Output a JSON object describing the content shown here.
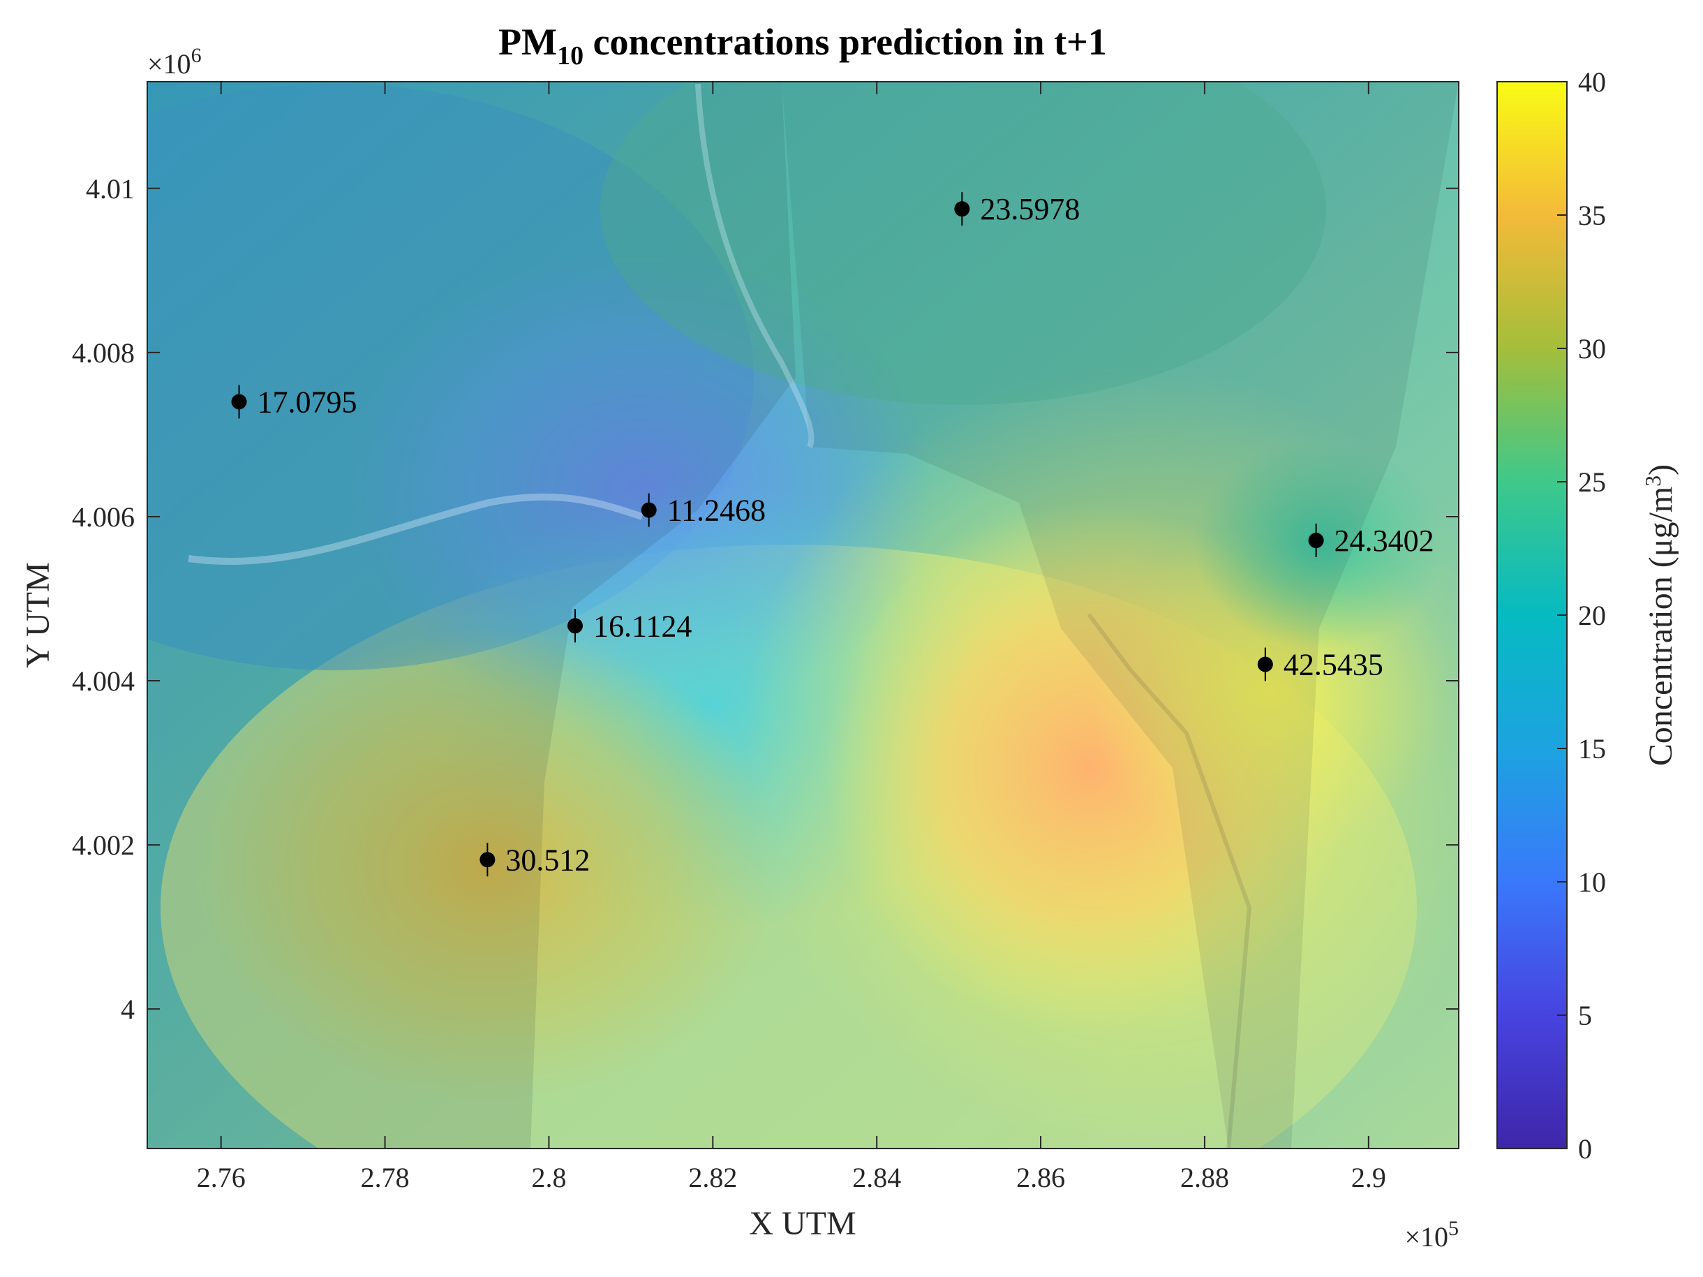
{
  "chart_data": {
    "type": "heatmap",
    "title": {
      "main": "PM",
      "sub": "10",
      "rest": " concentrations prediction in t+1"
    },
    "xlabel": "X UTM",
    "ylabel": "Y UTM",
    "x_multiplier": {
      "base": "×10",
      "exp": "5"
    },
    "y_multiplier": {
      "base": "×10",
      "exp": "6"
    },
    "xlim": [
      2.751,
      2.911
    ],
    "ylim": [
      3.9983,
      4.0113
    ],
    "x_ticks": [
      {
        "value": 2.76,
        "label": "2.76"
      },
      {
        "value": 2.78,
        "label": "2.78"
      },
      {
        "value": 2.8,
        "label": "2.8"
      },
      {
        "value": 2.82,
        "label": "2.82"
      },
      {
        "value": 2.84,
        "label": "2.84"
      },
      {
        "value": 2.86,
        "label": "2.86"
      },
      {
        "value": 2.88,
        "label": "2.88"
      },
      {
        "value": 2.9,
        "label": "2.9"
      }
    ],
    "y_ticks": [
      {
        "value": 4.0,
        "label": "4"
      },
      {
        "value": 4.002,
        "label": "4.002"
      },
      {
        "value": 4.004,
        "label": "4.004"
      },
      {
        "value": 4.006,
        "label": "4.006"
      },
      {
        "value": 4.008,
        "label": "4.008"
      },
      {
        "value": 4.01,
        "label": "4.01"
      }
    ],
    "colorbar": {
      "label": "Concentration (μg/m",
      "label_sup": "3",
      "label_end": ")",
      "range": [
        0,
        40
      ],
      "ticks": [
        {
          "value": 0,
          "label": "0"
        },
        {
          "value": 5,
          "label": "5"
        },
        {
          "value": 10,
          "label": "10"
        },
        {
          "value": 15,
          "label": "15"
        },
        {
          "value": 20,
          "label": "20"
        },
        {
          "value": 25,
          "label": "25"
        },
        {
          "value": 30,
          "label": "30"
        },
        {
          "value": 35,
          "label": "35"
        },
        {
          "value": 40,
          "label": "40"
        }
      ],
      "colormap": "parula"
    },
    "points": [
      {
        "x": 2.7622,
        "y": 4.0074,
        "value": 17.0795,
        "label": "17.0795"
      },
      {
        "x": 2.8122,
        "y": 4.00608,
        "value": 11.2468,
        "label": "11.2468"
      },
      {
        "x": 2.8032,
        "y": 4.00467,
        "value": 16.1124,
        "label": "16.1124"
      },
      {
        "x": 2.7925,
        "y": 4.00182,
        "value": 30.512,
        "label": "30.512"
      },
      {
        "x": 2.8504,
        "y": 4.00975,
        "value": 23.5978,
        "label": "23.5978"
      },
      {
        "x": 2.8936,
        "y": 4.00571,
        "value": 24.3402,
        "label": "24.3402"
      },
      {
        "x": 2.8874,
        "y": 4.0042,
        "value": 42.5435,
        "label": "42.5435"
      }
    ]
  }
}
